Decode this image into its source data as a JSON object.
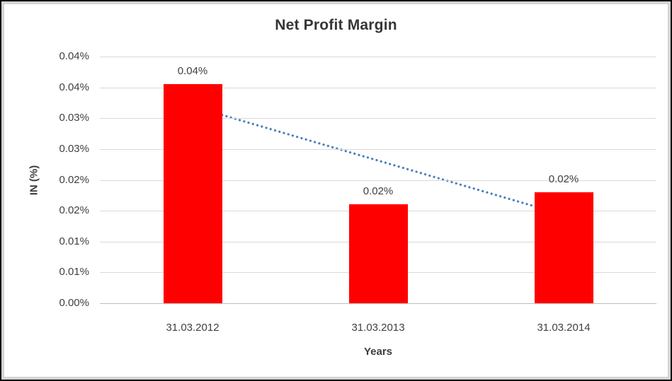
{
  "chart": {
    "title": "Net Profit Margin",
    "y_axis_title": "IN (%)",
    "x_axis_title": "Years"
  },
  "chart_data": {
    "type": "bar",
    "title": "Net Profit Margin",
    "xlabel": "Years",
    "ylabel": "IN (%)",
    "categories": [
      "31.03.2012",
      "31.03.2013",
      "31.03.2014"
    ],
    "values_pct": [
      0.0355,
      0.0161,
      0.018
    ],
    "data_labels": [
      "0.04%",
      "0.02%",
      "0.02%"
    ],
    "bar_color": "#ff0000",
    "ylim_pct": [
      0,
      0.04
    ],
    "y_major_unit_pct": 0.005,
    "y_tick_labels_top_to_bottom": [
      "0.04%",
      "0.04%",
      "0.03%",
      "0.03%",
      "0.02%",
      "0.02%",
      "0.01%",
      "0.01%",
      "0.00%"
    ],
    "grid": "horizontal",
    "gridline_color": "#d9d9d9",
    "legend": "none",
    "text_color": "#404040",
    "trendline": {
      "type": "linear",
      "style": "dotted",
      "color": "#4a7ebb",
      "x_start_frac": 0.164,
      "x_end_frac": 0.831,
      "start_value_pct": 0.032,
      "end_value_pct": 0.0144
    }
  }
}
